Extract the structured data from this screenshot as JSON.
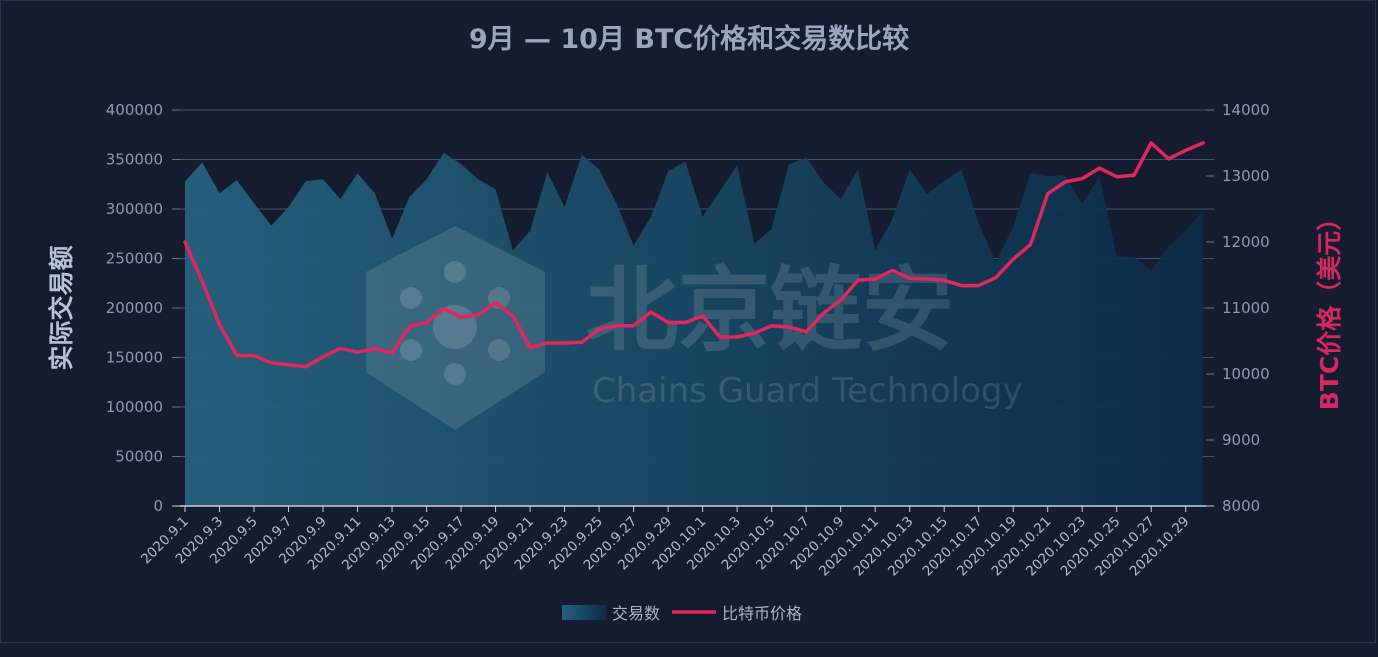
{
  "chart_data": {
    "type": "area+line",
    "title": "9月 — 10月 BTC价格和交易数比较",
    "watermark": {
      "name": "北京链安",
      "tagline": "Chains Guard Technology"
    },
    "colors": {
      "area_top": "#25627f",
      "area_bottom": "#0c2c48",
      "line": "#e2265e",
      "grid": "#48516a",
      "background": "#151c2f"
    },
    "y_left": {
      "label": "实际交易额",
      "lim": [
        0,
        400000
      ],
      "ticks": [
        "0",
        "50000",
        "100000",
        "150000",
        "200000",
        "250000",
        "300000",
        "350000",
        "400000"
      ]
    },
    "y_right": {
      "label": "BTC价格（美元）",
      "lim": [
        8000,
        14000
      ],
      "ticks": [
        "8000",
        "9000",
        "10000",
        "11000",
        "12000",
        "13000",
        "14000"
      ]
    },
    "categories": [
      "2020.9.1",
      "2020.9.2",
      "2020.9.3",
      "2020.9.4",
      "2020.9.5",
      "2020.9.6",
      "2020.9.7",
      "2020.9.8",
      "2020.9.9",
      "2020.9.10",
      "2020.9.11",
      "2020.9.12",
      "2020.9.13",
      "2020.9.14",
      "2020.9.15",
      "2020.9.16",
      "2020.9.17",
      "2020.9.18",
      "2020.9.19",
      "2020.9.20",
      "2020.9.21",
      "2020.9.22",
      "2020.9.23",
      "2020.9.24",
      "2020.9.25",
      "2020.9.26",
      "2020.9.27",
      "2020.9.28",
      "2020.9.29",
      "2020.9.30",
      "2020.10.1",
      "2020.10.2",
      "2020.10.3",
      "2020.10.4",
      "2020.10.5",
      "2020.10.6",
      "2020.10.7",
      "2020.10.8",
      "2020.10.9",
      "2020.10.10",
      "2020.10.11",
      "2020.10.12",
      "2020.10.13",
      "2020.10.14",
      "2020.10.15",
      "2020.10.16",
      "2020.10.17",
      "2020.10.18",
      "2020.10.19",
      "2020.10.20",
      "2020.10.21",
      "2020.10.22",
      "2020.10.23",
      "2020.10.24",
      "2020.10.25",
      "2020.10.26",
      "2020.10.27",
      "2020.10.28",
      "2020.10.29",
      "2020.10.30"
    ],
    "series": [
      {
        "name": "交易数",
        "type": "area",
        "axis": "left",
        "values": [
          328000,
          347000,
          316000,
          329000,
          306000,
          283000,
          302000,
          328000,
          330000,
          310000,
          336000,
          316000,
          270000,
          312000,
          330000,
          357000,
          345000,
          330000,
          320000,
          258000,
          278000,
          337000,
          302000,
          355000,
          340000,
          306000,
          263000,
          292000,
          338000,
          348000,
          292000,
          318000,
          344000,
          265000,
          280000,
          345000,
          352000,
          327000,
          310000,
          340000,
          258000,
          290000,
          340000,
          315000,
          328000,
          340000,
          285000,
          246000,
          282000,
          336000,
          333000,
          334000,
          305000,
          333000,
          252000,
          252000,
          238000,
          262000,
          278000,
          298000
        ]
      },
      {
        "name": "比特币价格",
        "type": "line",
        "axis": "right",
        "values": [
          12000,
          11400,
          10750,
          10280,
          10280,
          10170,
          10140,
          10110,
          10260,
          10390,
          10330,
          10380,
          10320,
          10720,
          10780,
          10990,
          10860,
          10900,
          11080,
          10880,
          10400,
          10470,
          10470,
          10480,
          10680,
          10730,
          10730,
          10940,
          10780,
          10780,
          10880,
          10560,
          10560,
          10620,
          10730,
          10710,
          10640,
          10920,
          11120,
          11420,
          11440,
          11570,
          11450,
          11440,
          11420,
          11340,
          11340,
          11460,
          11740,
          11960,
          12730,
          12910,
          12960,
          13120,
          12990,
          13010,
          13500,
          13260,
          13390,
          13500
        ]
      }
    ],
    "x_tick_labels": [
      "2020.9.1",
      "2020.9.3",
      "2020.9.5",
      "2020.9.7",
      "2020.9.9",
      "2020.9.11",
      "2020.9.13",
      "2020.9.15",
      "2020.9.17",
      "2020.9.19",
      "2020.9.21",
      "2020.9.23",
      "2020.9.25",
      "2020.9.27",
      "2020.9.29",
      "2020.10.1",
      "2020.10.3",
      "2020.10.5",
      "2020.10.7",
      "2020.10.9",
      "2020.10.11",
      "2020.10.13",
      "2020.10.15",
      "2020.10.17",
      "2020.10.19",
      "2020.10.21",
      "2020.10.23",
      "2020.10.25",
      "2020.10.27",
      "2020.10.29"
    ],
    "grid": true,
    "legend_position": "bottom-center"
  }
}
